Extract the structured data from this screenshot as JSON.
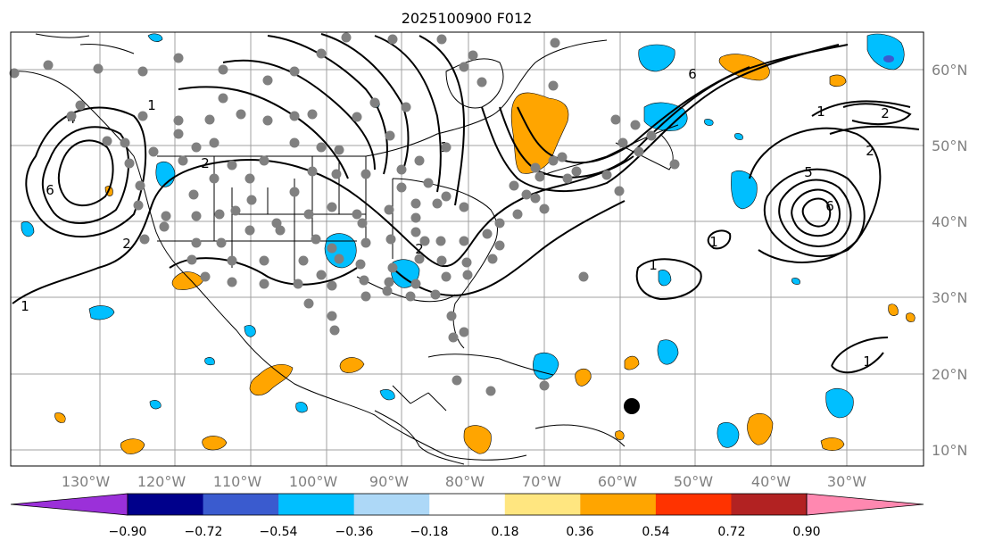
{
  "title": "2025100900 F012",
  "lon_labels": [
    "130°W",
    "120°W",
    "110°W",
    "100°W",
    "90°W",
    "80°W",
    "70°W",
    "60°W",
    "50°W",
    "40°W",
    "30°W"
  ],
  "lat_labels": [
    "60°N",
    "50°N",
    "40°N",
    "30°N",
    "20°N",
    "10°N"
  ],
  "colorbar": {
    "tick_labels": [
      "−0.90",
      "−0.72",
      "−0.54",
      "−0.36",
      "−0.18",
      "0.18",
      "0.36",
      "0.54",
      "0.72",
      "0.90"
    ],
    "colors": [
      "#9b30d9",
      "#00008b",
      "#3a5bcf",
      "#00bfff",
      "#add8f7",
      "#ffffff",
      "#ffe680",
      "#ffa500",
      "#ff3300",
      "#b22222",
      "#ff88b0"
    ]
  },
  "contour_labels": [
    "1",
    "2",
    "1",
    "2",
    "6",
    "4",
    "1",
    "2",
    "6",
    "5",
    "6",
    "1",
    "2",
    "1",
    "2",
    "1",
    "1"
  ],
  "colors": {
    "positive_fill": "#ffa500",
    "negative_fill": "#00bfff",
    "contour": "#000000",
    "station_marker": "#808080",
    "grid": "#a0a0a0"
  }
}
